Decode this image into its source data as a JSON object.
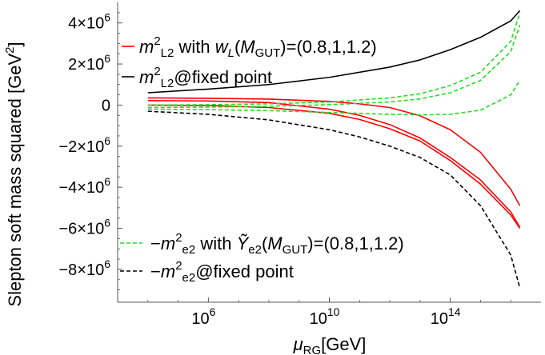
{
  "chart_data": {
    "type": "line",
    "xlabel": {
      "sym": "μ",
      "sub": "RG",
      "unit": "[GeV]"
    },
    "ylabel": {
      "text": "Slepton soft mass squared [GeV",
      "sup": "2",
      "close": "]"
    },
    "x_scale": "log10",
    "xlim": [
      1000.0,
      1e+17
    ],
    "ylim": [
      -9600000.0,
      5000000.0
    ],
    "x_ticks": [
      {
        "value": 1000000.0,
        "base": "10",
        "exp": "6"
      },
      {
        "value": 10000000000.0,
        "base": "10",
        "exp": "10"
      },
      {
        "value": 100000000000000.0,
        "base": "10",
        "exp": "14"
      }
    ],
    "y_ticks": [
      {
        "value": 4000000.0,
        "mant": "4",
        "exp": "6"
      },
      {
        "value": 2000000.0,
        "mant": "2",
        "exp": "6"
      },
      {
        "value": 0,
        "mant": "0",
        "exp": ""
      },
      {
        "value": -2000000.0,
        "mant": "−2",
        "exp": "6"
      },
      {
        "value": -4000000.0,
        "mant": "−4",
        "exp": "6"
      },
      {
        "value": -6000000.0,
        "mant": "−6",
        "exp": "6"
      },
      {
        "value": -8000000.0,
        "mant": "−8",
        "exp": "6"
      }
    ],
    "legend": [
      {
        "series": "red",
        "parts": [
          [
            "m",
            1
          ],
          [
            "2",
            "sup"
          ],
          [
            "L2",
            "sub"
          ],
          [
            " with ",
            0
          ],
          [
            "w",
            1
          ],
          [
            "L",
            "subi"
          ],
          [
            "(",
            0
          ],
          [
            "M",
            1
          ],
          [
            "GUT",
            "sub"
          ],
          [
            ")=(0.8,1,1.2)",
            0
          ]
        ]
      },
      {
        "series": "black",
        "parts": [
          [
            "m",
            1
          ],
          [
            "2",
            "sup"
          ],
          [
            "L2",
            "sub"
          ],
          [
            "@fixed point",
            0
          ]
        ]
      },
      {
        "series": "green",
        "parts": [
          [
            "−",
            0
          ],
          [
            "m",
            1
          ],
          [
            "2",
            "sup"
          ],
          [
            "e2",
            "sub"
          ],
          [
            " with ",
            0
          ],
          [
            "Ỹ",
            1
          ],
          [
            "e2",
            "sub"
          ],
          [
            "(",
            0
          ],
          [
            "M",
            1
          ],
          [
            "GUT",
            "sub"
          ],
          [
            ")=(0.8,1,1.2)",
            0
          ]
        ]
      },
      {
        "series": "black-dashed",
        "parts": [
          [
            "−",
            0
          ],
          [
            "m",
            1
          ],
          [
            "2",
            "sup"
          ],
          [
            "e2",
            "sub"
          ],
          [
            "@fixed point",
            0
          ]
        ]
      }
    ],
    "colors": {
      "red": "#ff0000",
      "black": "#000000",
      "green": "#22dd22"
    },
    "series": [
      {
        "group": "red",
        "style": "solid",
        "color": "#ff0000",
        "x": [
          10000.0,
          1000000.0,
          100000000.0,
          10000000000.0,
          100000000000.0,
          1000000000000.0,
          10000000000000.0,
          100000000000000.0,
          1000000000000000.0,
          1e+16,
          2e+16
        ],
        "y": [
          220000.0,
          200000.0,
          120000.0,
          -200000.0,
          -500000.0,
          -950000.0,
          -1600000.0,
          -2550000.0,
          -3650000.0,
          -5200000.0,
          -5950000.0
        ]
      },
      {
        "group": "red",
        "style": "solid",
        "color": "#ff0000",
        "x": [
          10000.0,
          1000000.0,
          100000000.0,
          10000000000.0,
          100000000000.0,
          1000000000000.0,
          10000000000000.0,
          100000000000000.0,
          1000000000000000.0,
          1e+16,
          2e+16
        ],
        "y": [
          350000.0,
          330000.0,
          290000.0,
          180000.0,
          60000.0,
          -120000.0,
          -520000.0,
          -1200000.0,
          -2300000.0,
          -4100000.0,
          -4900000.0
        ]
      },
      {
        "group": "red",
        "style": "solid",
        "color": "#ff0000",
        "x": [
          10000.0,
          1000000.0,
          100000000.0,
          10000000000.0,
          100000000000.0,
          1000000000000.0,
          10000000000000.0,
          100000000000000.0,
          1000000000000000.0,
          1e+16,
          2e+16
        ],
        "y": [
          0.0,
          -20000.0,
          -120000.0,
          -400000.0,
          -700000.0,
          -1150000.0,
          -1750000.0,
          -2700000.0,
          -3850000.0,
          -5350000.0,
          -6000000.0
        ]
      },
      {
        "group": "black",
        "style": "solid",
        "color": "#000000",
        "x": [
          10000.0,
          1000000.0,
          100000000.0,
          10000000000.0,
          1000000000000.0,
          10000000000000.0,
          100000000000000.0,
          1000000000000000.0,
          1e+16,
          2e+16
        ],
        "y": [
          600000.0,
          780000.0,
          1000000.0,
          1350000.0,
          1850000.0,
          2200000.0,
          2700000.0,
          3300000.0,
          4100000.0,
          4600000.0
        ]
      },
      {
        "group": "green",
        "style": "dashed",
        "color": "#22dd22",
        "x": [
          10000.0,
          1000000.0,
          100000000.0,
          10000000000.0,
          1000000000000.0,
          10000000000000.0,
          100000000000000.0,
          1000000000000000.0,
          1e+16,
          2e+16
        ],
        "y": [
          0.0,
          20000.0,
          60000.0,
          150000.0,
          350000.0,
          550000.0,
          950000.0,
          1600000.0,
          3100000.0,
          4500000.0
        ]
      },
      {
        "group": "green",
        "style": "dashed",
        "color": "#22dd22",
        "x": [
          10000.0,
          1000000.0,
          100000000.0,
          10000000000.0,
          1000000000000.0,
          10000000000000.0,
          100000000000000.0,
          1000000000000000.0,
          1e+16,
          2e+16
        ],
        "y": [
          -120000.0,
          -100000.0,
          -60000.0,
          20000.0,
          150000.0,
          300000.0,
          600000.0,
          1200000.0,
          2600000.0,
          3900000.0
        ]
      },
      {
        "group": "green",
        "style": "dashed",
        "color": "#22dd22",
        "x": [
          10000.0,
          1000000.0,
          100000000.0,
          10000000000.0,
          1000000000000.0,
          10000000000000.0,
          100000000000000.0,
          1000000000000000.0,
          1e+16,
          2e+16
        ],
        "y": [
          -200000.0,
          -220000.0,
          -270000.0,
          -360000.0,
          -450000.0,
          -480000.0,
          -450000.0,
          -250000.0,
          500000.0,
          1200000.0
        ]
      },
      {
        "group": "black-dashed",
        "style": "dashed",
        "color": "#000000",
        "x": [
          10000.0,
          1000000.0,
          100000000.0,
          10000000000.0,
          100000000000.0,
          1000000000000.0,
          10000000000000.0,
          100000000000000.0,
          1000000000000000.0,
          1e+16,
          2e+16
        ],
        "y": [
          -300000.0,
          -450000.0,
          -720000.0,
          -1200000.0,
          -1550000.0,
          -2000000.0,
          -2550000.0,
          -3400000.0,
          -4900000.0,
          -7300000.0,
          -8900000.0
        ]
      }
    ]
  }
}
